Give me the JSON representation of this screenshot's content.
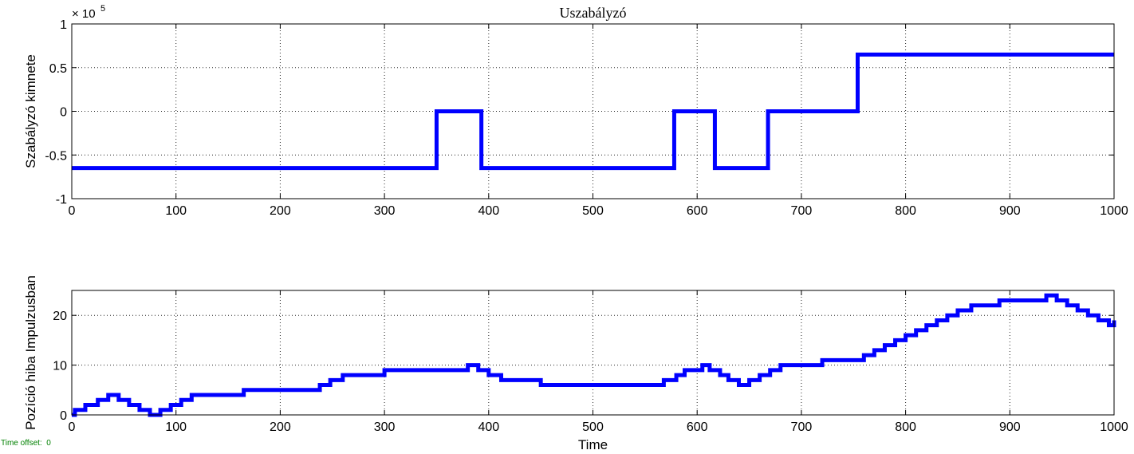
{
  "colors": {
    "trace": "#0000ff",
    "offset_text": "#008000"
  },
  "footer": {
    "time_offset_label": "Time offset:",
    "time_offset_value": "0"
  },
  "chart_data": [
    {
      "type": "line",
      "title": "Uszabályzó",
      "xlabel": "",
      "ylabel": "Szabályzó kimnete",
      "exponent_base": "× 10",
      "exponent_power": "5",
      "xlim": [
        0,
        1000
      ],
      "ylim": [
        -1,
        1
      ],
      "xticks": [
        0,
        100,
        200,
        300,
        400,
        500,
        600,
        700,
        800,
        900,
        1000
      ],
      "xtick_labels": [
        "0",
        "100",
        "200",
        "300",
        "400",
        "500",
        "600",
        "700",
        "800",
        "900",
        "1000"
      ],
      "yticks": [
        -1,
        -0.5,
        0,
        0.5,
        1
      ],
      "ytick_labels": [
        "-1",
        "-0.5",
        "0",
        "0.5",
        "1"
      ],
      "grid": true,
      "step": true,
      "series": [
        {
          "x": [
            0,
            350,
            350,
            393,
            393,
            578,
            578,
            617,
            617,
            668,
            668,
            754,
            754,
            1000
          ],
          "values": [
            -0.65,
            -0.65,
            0,
            0,
            -0.65,
            -0.65,
            0,
            0,
            -0.65,
            -0.65,
            0,
            0,
            0.65,
            0.65
          ]
        }
      ]
    },
    {
      "type": "line",
      "title": "",
      "xlabel": "Time",
      "ylabel": "Pozíció hiba Impulzusban",
      "xlim": [
        0,
        1000
      ],
      "ylim": [
        0,
        25
      ],
      "xticks": [
        0,
        100,
        200,
        300,
        400,
        500,
        600,
        700,
        800,
        900,
        1000
      ],
      "xtick_labels": [
        "0",
        "100",
        "200",
        "300",
        "400",
        "500",
        "600",
        "700",
        "800",
        "900",
        "1000"
      ],
      "yticks": [
        0,
        10,
        20
      ],
      "ytick_labels": [
        "0",
        "10",
        "20"
      ],
      "grid": true,
      "step": true,
      "series": [
        {
          "x": [
            0,
            3,
            13,
            25,
            35,
            45,
            55,
            65,
            75,
            85,
            95,
            105,
            115,
            165,
            228,
            238,
            248,
            260,
            300,
            350,
            380,
            390,
            400,
            412,
            450,
            500,
            538,
            568,
            580,
            588,
            605,
            612,
            622,
            630,
            640,
            650,
            660,
            670,
            680,
            700,
            720,
            750,
            760,
            770,
            780,
            790,
            800,
            810,
            820,
            830,
            840,
            850,
            863,
            890,
            915,
            935,
            945,
            955,
            965,
            975,
            985,
            995,
            1000
          ],
          "values": [
            0,
            1,
            2,
            3,
            4,
            3,
            2,
            1,
            0,
            1,
            2,
            3,
            4,
            5,
            5,
            6,
            7,
            8,
            9,
            9,
            10,
            9,
            8,
            7,
            6,
            6,
            6,
            7,
            8,
            9,
            10,
            9,
            8,
            7,
            6,
            7,
            8,
            9,
            10,
            10,
            11,
            11,
            12,
            13,
            14,
            15,
            16,
            17,
            18,
            19,
            20,
            21,
            22,
            23,
            23,
            24,
            23,
            22,
            21,
            20,
            19,
            18,
            19
          ]
        }
      ]
    }
  ]
}
